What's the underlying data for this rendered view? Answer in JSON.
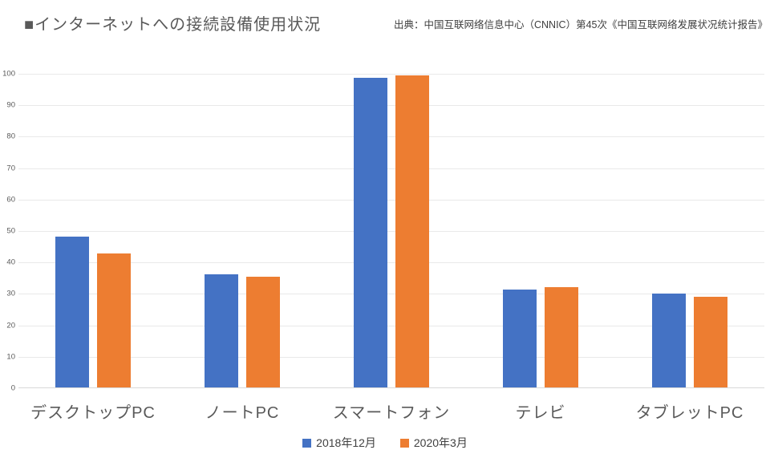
{
  "header": {
    "title": "■インターネットへの接続設備使用状況",
    "source": "出典：中国互联网络信息中心（CNNIC）第45次《中国互联网络发展状况统计报告》"
  },
  "chart_data": {
    "type": "bar",
    "title": "インターネットへの接続設備使用状況",
    "categories": [
      "デスクトップPC",
      "ノートPC",
      "スマートフォン",
      "テレビ",
      "タブレットPC"
    ],
    "series": [
      {
        "name": "2018年12月",
        "color": "#4472c4",
        "values": [
          48.0,
          35.9,
          98.6,
          31.1,
          29.8
        ]
      },
      {
        "name": "2020年3月",
        "color": "#ed7d31",
        "values": [
          42.7,
          35.1,
          99.3,
          32.0,
          28.9
        ]
      }
    ],
    "xlabel": "",
    "ylabel": "",
    "ylim": [
      0,
      100
    ],
    "ytick_step": 10,
    "grid": true,
    "legend_position": "bottom"
  }
}
